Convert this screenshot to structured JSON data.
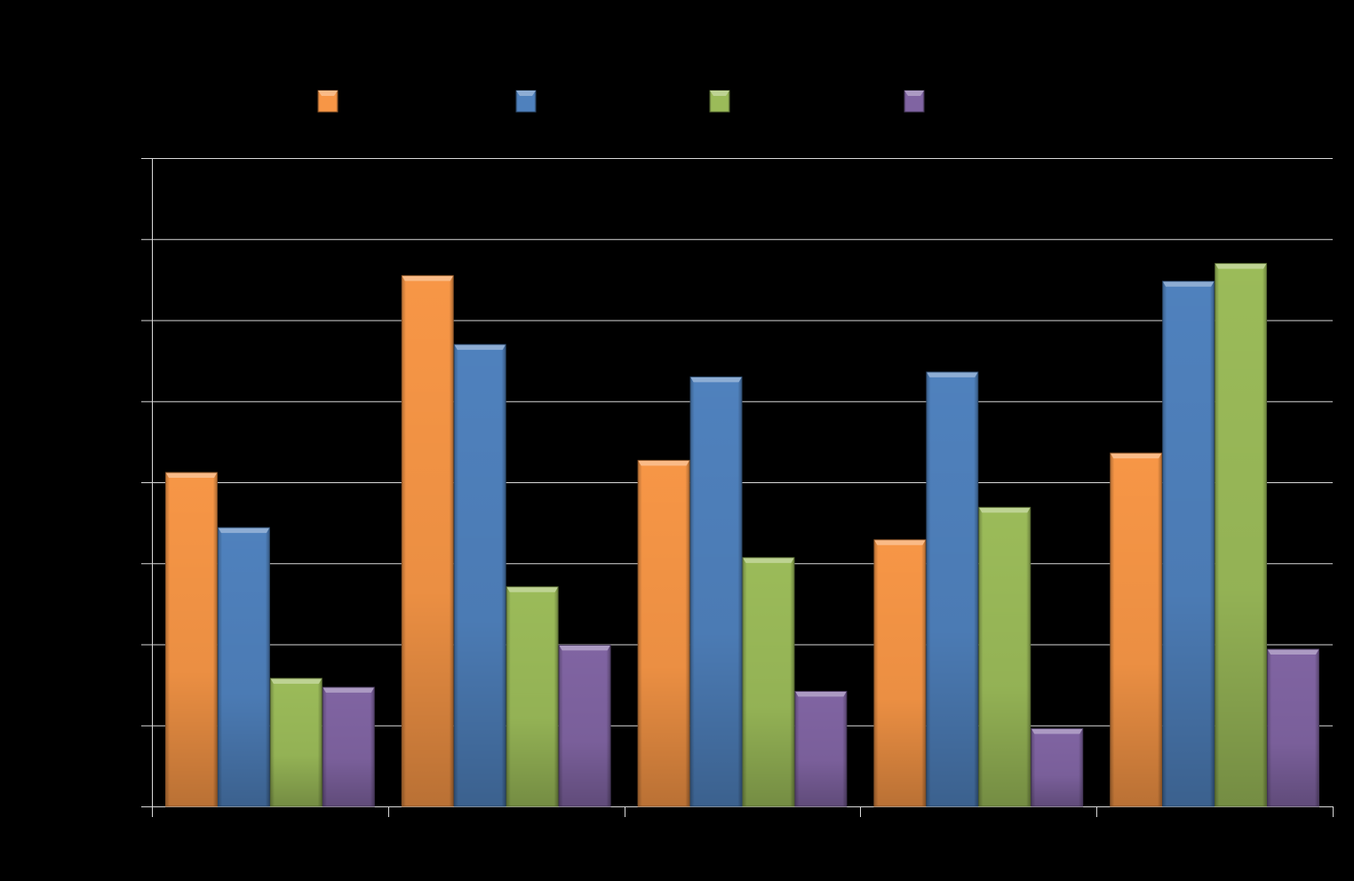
{
  "chart_data": {
    "type": "bar",
    "title": "",
    "xlabel": "",
    "ylabel": "",
    "categories": [
      "",
      "",
      "",
      "",
      ""
    ],
    "ylim": [
      0,
      8
    ],
    "y_ticks": [
      0,
      1,
      2,
      3,
      4,
      5,
      6,
      7,
      8
    ],
    "grid": true,
    "legend_placement": "top",
    "series": [
      {
        "color": "#F79646",
        "values": [
          4.12,
          6.55,
          4.27,
          3.29,
          4.36
        ]
      },
      {
        "color": "#4F81BD",
        "values": [
          3.44,
          5.7,
          5.3,
          5.36,
          6.48
        ]
      },
      {
        "color": "#9BBB59",
        "values": [
          1.58,
          2.71,
          3.07,
          3.69,
          6.7
        ]
      },
      {
        "color": "#8064A2",
        "values": [
          1.47,
          1.99,
          1.42,
          0.96,
          1.94
        ]
      }
    ]
  }
}
